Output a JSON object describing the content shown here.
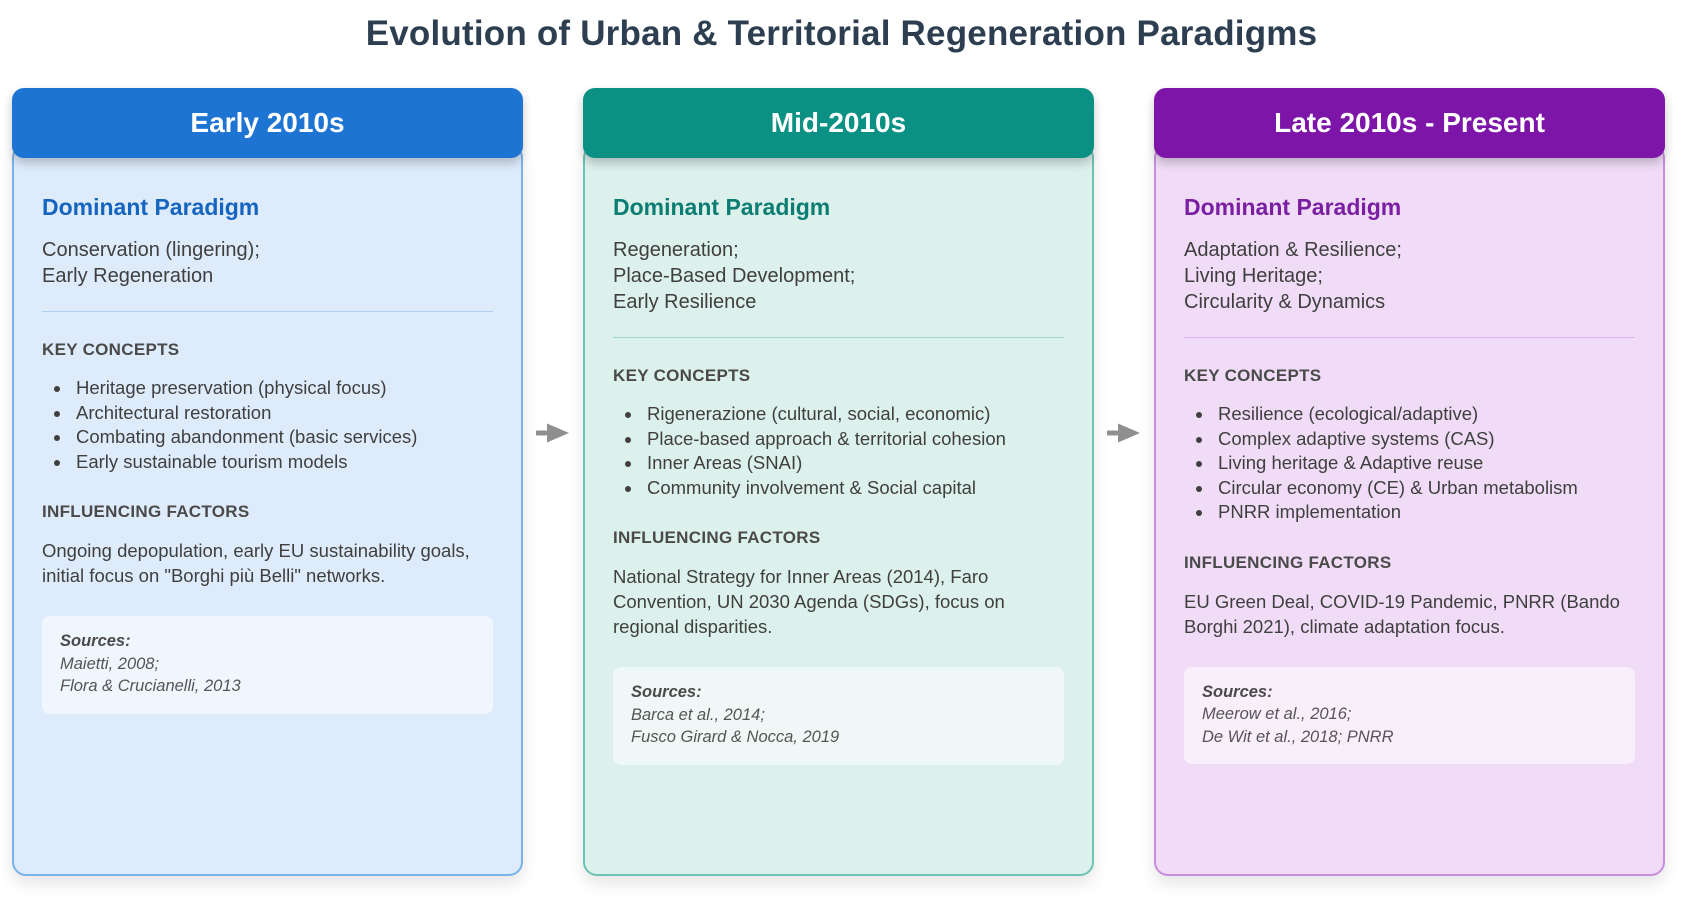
{
  "title": "Evolution of Urban & Territorial Regeneration Paradigms",
  "colors": {
    "title_color": "#2c3e50",
    "text_color": "#3f3f3f",
    "heading_color": "#4a4a4a",
    "sources_text": "#555555",
    "sources_bg": "rgba(255,255,255,0.55)",
    "arrow_color": "#8f8f8f"
  },
  "columns": [
    {
      "period": "Early 2010s",
      "colors": {
        "header_bg": "#1e74d2",
        "body_bg": "#ddebfb",
        "border": "#79b3ea",
        "divider": "#aecff2",
        "accent": "#1565c0"
      },
      "dominant_paradigm_label": "Dominant Paradigm",
      "dominant_paradigm": [
        "Conservation (lingering);",
        "Early Regeneration"
      ],
      "key_concepts_label": "KEY CONCEPTS",
      "key_concepts": [
        "Heritage preservation (physical focus)",
        "Architectural restoration",
        "Combating abandonment (basic services)",
        "Early sustainable tourism models"
      ],
      "influencing_factors_label": "INFLUENCING FACTORS",
      "influencing_factors": "Ongoing depopulation, early EU sustainability goals, initial focus on \"Borghi più Belli\" networks.",
      "sources_label": "Sources:",
      "sources": [
        "Maietti, 2008;",
        "Flora & Crucianelli, 2013"
      ]
    },
    {
      "period": "Mid-2010s",
      "colors": {
        "header_bg": "#0a9184",
        "body_bg": "#dcf0ec",
        "border": "#6fc3b4",
        "divider": "#9ed8cc",
        "accent": "#0c7d72"
      },
      "dominant_paradigm_label": "Dominant Paradigm",
      "dominant_paradigm": [
        "Regeneration;",
        "Place-Based Development;",
        "Early Resilience"
      ],
      "key_concepts_label": "KEY CONCEPTS",
      "key_concepts": [
        "Rigenerazione (cultural, social, economic)",
        "Place-based approach & territorial cohesion",
        "Inner Areas (SNAI)",
        "Community involvement & Social capital"
      ],
      "influencing_factors_label": "INFLUENCING FACTORS",
      "influencing_factors": "National Strategy for Inner Areas (2014), Faro Convention, UN 2030 Agenda (SDGs), focus on regional disparities.",
      "sources_label": "Sources:",
      "sources": [
        "Barca et al., 2014;",
        "Fusco Girard & Nocca, 2019"
      ]
    },
    {
      "period": "Late 2010s - Present",
      "colors": {
        "header_bg": "#7d15a8",
        "body_bg": "#f0dcf6",
        "border": "#c98ddd",
        "divider": "#ddb5ec",
        "accent": "#7b1fa2"
      },
      "dominant_paradigm_label": "Dominant Paradigm",
      "dominant_paradigm": [
        "Adaptation & Resilience;",
        "Living Heritage;",
        "Circularity & Dynamics"
      ],
      "key_concepts_label": "KEY CONCEPTS",
      "key_concepts": [
        "Resilience (ecological/adaptive)",
        "Complex adaptive systems (CAS)",
        "Living heritage & Adaptive reuse",
        "Circular economy (CE) & Urban metabolism",
        "PNRR implementation"
      ],
      "influencing_factors_label": "INFLUENCING FACTORS",
      "influencing_factors": "EU Green Deal, COVID-19 Pandemic, PNRR (Bando Borghi 2021), climate adaptation focus.",
      "sources_label": "Sources:",
      "sources": [
        "Meerow et al., 2016;",
        "De Wit et al., 2018; PNRR"
      ]
    }
  ]
}
